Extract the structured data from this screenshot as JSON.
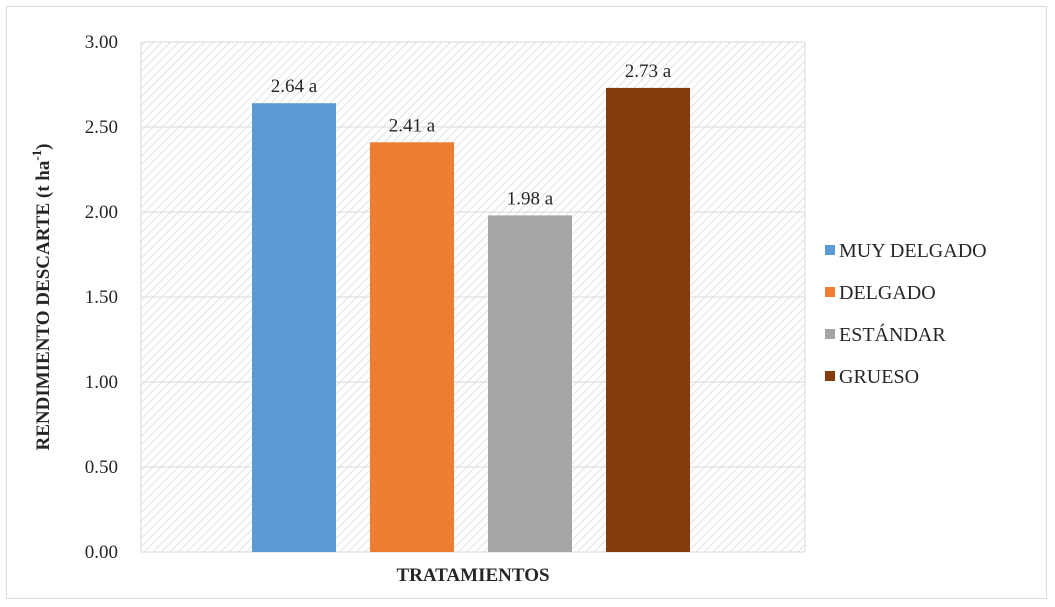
{
  "chart_data": {
    "type": "bar",
    "categories": [
      "MUY DELGADO",
      "DELGADO",
      "ESTÁNDAR",
      "GRUESO"
    ],
    "values": [
      2.64,
      2.41,
      1.98,
      2.73
    ],
    "data_labels": [
      "2.64 a",
      "2.41 a",
      "1.98 a",
      "2.73 a"
    ],
    "colors": [
      "#5b9bd5",
      "#ed7d31",
      "#a5a5a5",
      "#843c0c"
    ],
    "xlabel": "TRATAMIENTOS",
    "ylabel": "RENDIMIENTO  DESCARTE (t ha",
    "ylabel_sup": "-1",
    "ylabel_end": ")",
    "yticks": [
      "0.00",
      "0.50",
      "1.00",
      "1.50",
      "2.00",
      "2.50",
      "3.00"
    ],
    "ylim": [
      0,
      3
    ],
    "grid": true,
    "plot_background": "diagonal-hatch",
    "legend_position": "right"
  }
}
